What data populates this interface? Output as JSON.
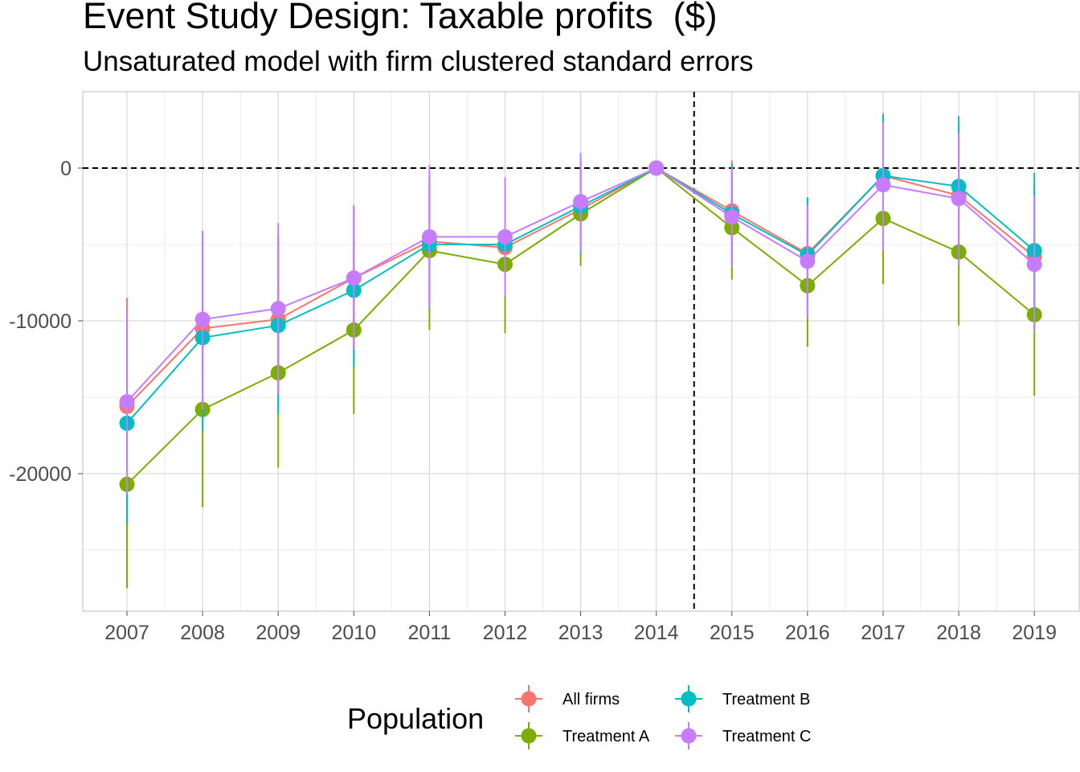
{
  "chart_data": {
    "type": "line",
    "title": "Event Study Design: Taxable profits  ($)",
    "subtitle": "Unsaturated model with firm clustered standard errors",
    "xlabel": "",
    "ylabel": "",
    "categories": [
      "2007",
      "2008",
      "2009",
      "2010",
      "2011",
      "2012",
      "2013",
      "2014",
      "2015",
      "2016",
      "2017",
      "2018",
      "2019"
    ],
    "ylim": [
      -29000,
      5000
    ],
    "y_ticks": [
      0,
      -10000,
      -20000
    ],
    "y_tick_labels": [
      "0",
      "-10000",
      "-20000"
    ],
    "grid": true,
    "reference_lines": {
      "y": 0,
      "x_between": [
        "2014",
        "2015"
      ],
      "style": "dashed"
    },
    "legend": {
      "title": "Population",
      "position": "bottom"
    },
    "series": [
      {
        "name": "All firms",
        "color": "#F8766D",
        "values": [
          -15600,
          -10500,
          -9900,
          -7200,
          -4800,
          -5200,
          -2700,
          0,
          -2800,
          -5600,
          -500,
          -1800,
          -5800
        ],
        "lower": [
          -23000,
          -16500,
          -15500,
          -12000,
          -9500,
          -9500,
          -5700,
          0,
          -6200,
          -9200,
          -5000,
          -6500,
          -10500
        ],
        "upper": [
          -8500,
          -4500,
          -4500,
          -2500,
          -500,
          -1000,
          400,
          0,
          500,
          -2000,
          3600,
          2800,
          -1200
        ]
      },
      {
        "name": "Treatment A",
        "color": "#7CAE00",
        "values": [
          -20700,
          -15800,
          -13400,
          -10600,
          -5400,
          -6300,
          -3000,
          0,
          -3900,
          -7700,
          -3300,
          -5500,
          -9600
        ],
        "lower": [
          -27500,
          -22200,
          -19600,
          -16100,
          -10600,
          -10800,
          -6400,
          0,
          -7300,
          -11700,
          -7600,
          -10300,
          -14900
        ],
        "upper": [
          -13900,
          -9400,
          -7300,
          -5100,
          -200,
          -1800,
          400,
          0,
          -500,
          -3700,
          1000,
          -700,
          -4300
        ]
      },
      {
        "name": "Treatment B",
        "color": "#00BFC4",
        "values": [
          -16700,
          -11100,
          -10300,
          -8000,
          -5000,
          -5000,
          -2500,
          0,
          -3000,
          -5700,
          -500,
          -1200,
          -5400
        ],
        "lower": [
          -23300,
          -17200,
          -16100,
          -13000,
          -9200,
          -8400,
          -5600,
          0,
          -6300,
          -9600,
          -4800,
          -5700,
          -10400
        ],
        "upper": [
          -10100,
          -5000,
          -4500,
          -3000,
          -800,
          -1600,
          600,
          0,
          300,
          -1900,
          3500,
          3400,
          -300
        ]
      },
      {
        "name": "Treatment C",
        "color": "#C77CFF",
        "values": [
          -15300,
          -9900,
          -9200,
          -7200,
          -4500,
          -4500,
          -2200,
          0,
          -3200,
          -6100,
          -1100,
          -2000,
          -6300
        ],
        "lower": [
          -21300,
          -15800,
          -14800,
          -11900,
          -9200,
          -8400,
          -5500,
          0,
          -6400,
          -9800,
          -5400,
          -6400,
          -10700
        ],
        "upper": [
          -9300,
          -4100,
          -3600,
          -2400,
          200,
          -600,
          1000,
          0,
          0,
          -2400,
          3000,
          2300,
          -1800
        ]
      }
    ]
  }
}
